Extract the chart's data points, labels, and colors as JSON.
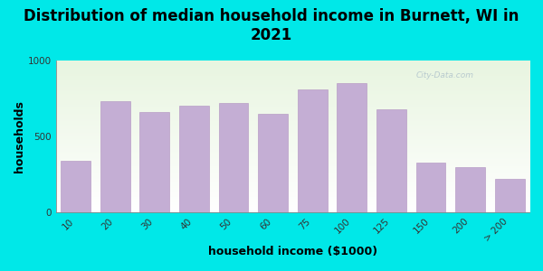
{
  "title": "Distribution of median household income in Burnett, WI in\n2021",
  "xlabel": "household income ($1000)",
  "ylabel": "households",
  "categories": [
    "10",
    "20",
    "30",
    "40",
    "50",
    "60",
    "75",
    "100",
    "125",
    "150",
    "200",
    "> 200"
  ],
  "values": [
    340,
    730,
    660,
    700,
    720,
    650,
    810,
    850,
    680,
    330,
    295,
    220
  ],
  "bar_color": "#c4aed4",
  "bar_edge_color": "#b090c0",
  "bg_color": "#00e8e8",
  "plot_bg_topleft": "#e8f5e0",
  "plot_bg_right": "#f8fff8",
  "plot_bg_bottom": "#ffffff",
  "ylim": [
    0,
    1000
  ],
  "yticks": [
    0,
    500,
    1000
  ],
  "title_fontsize": 12,
  "axis_label_fontsize": 9,
  "tick_fontsize": 7.5,
  "watermark_text": "City-Data.com"
}
